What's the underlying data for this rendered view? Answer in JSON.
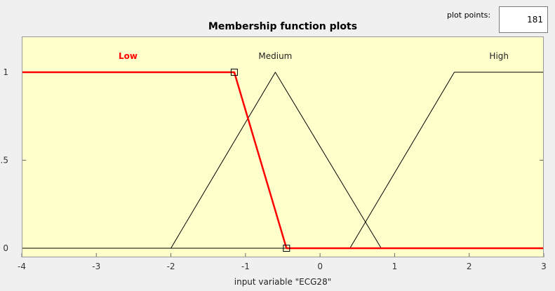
{
  "plot_points": {
    "label": "plot points:",
    "value": "181"
  },
  "chart_data": {
    "type": "line",
    "title": "Membership function plots",
    "xlabel": "input variable \"ECG28\"",
    "ylabel": "",
    "xlim": [
      -4,
      3
    ],
    "ylim": [
      0,
      1
    ],
    "x_ticks": [
      "-4",
      "-3",
      "-2",
      "-1",
      "0",
      "1",
      "2",
      "3"
    ],
    "y_ticks": [
      "0",
      "0.5",
      "1"
    ],
    "background_color": "#ffffcc",
    "grid": false,
    "series": [
      {
        "name": "Low",
        "selected": true,
        "color": "#ff0000",
        "x": [
          -4,
          -1.15,
          -0.45,
          3
        ],
        "y": [
          1,
          1,
          0,
          0
        ]
      },
      {
        "name": "Medium",
        "selected": false,
        "color": "#000000",
        "x": [
          -4,
          -2,
          -0.6,
          0.82,
          3
        ],
        "y": [
          0,
          0,
          1,
          0,
          0
        ]
      },
      {
        "name": "High",
        "selected": false,
        "color": "#000000",
        "x": [
          -4,
          0.4,
          1.8,
          3
        ],
        "y": [
          0,
          0,
          1,
          1
        ]
      }
    ]
  }
}
